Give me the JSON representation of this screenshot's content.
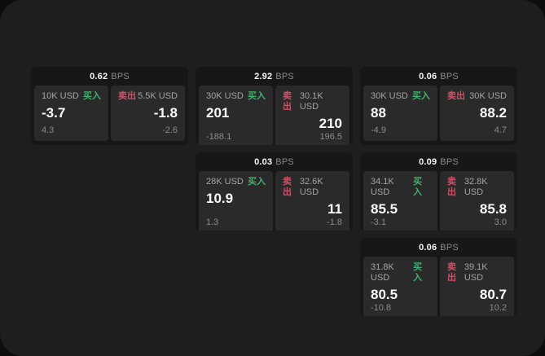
{
  "labels": {
    "unit": "BPS",
    "buy": "买入",
    "sell": "卖出"
  },
  "colors": {
    "buy_accent": "#3fb16e",
    "sell_accent": "#cc5268",
    "page_bg": "#1e1e1e",
    "card_bg": "#171717",
    "panel_bg": "#2a2a2a"
  },
  "cards": [
    {
      "bps": "0.62",
      "buy": {
        "size": "10K USD",
        "price": "-3.7",
        "change": "4.3"
      },
      "sell": {
        "size": "5.5K USD",
        "price": "-1.8",
        "change": "-2.6"
      }
    },
    {
      "bps": "2.92",
      "buy": {
        "size": "30K USD",
        "price": "201",
        "change": "-188.1"
      },
      "sell": {
        "size": "30.1K USD",
        "price": "210",
        "change": "196.5"
      }
    },
    {
      "bps": "0.06",
      "buy": {
        "size": "30K USD",
        "price": "88",
        "change": "-4.9"
      },
      "sell": {
        "size": "30K USD",
        "price": "88.2",
        "change": "4.7"
      }
    },
    {
      "bps": "0.03",
      "buy": {
        "size": "28K USD",
        "price": "10.9",
        "change": "1.3"
      },
      "sell": {
        "size": "32.6K USD",
        "price": "11",
        "change": "-1.8"
      }
    },
    {
      "bps": "0.09",
      "buy": {
        "size": "34.1K USD",
        "price": "85.5",
        "change": "-3.1"
      },
      "sell": {
        "size": "32.8K USD",
        "price": "85.8",
        "change": "3.0"
      }
    },
    {
      "bps": "0.06",
      "buy": {
        "size": "31.8K USD",
        "price": "80.5",
        "change": "-10.8"
      },
      "sell": {
        "size": "39.1K USD",
        "price": "80.7",
        "change": "10.2"
      }
    }
  ]
}
